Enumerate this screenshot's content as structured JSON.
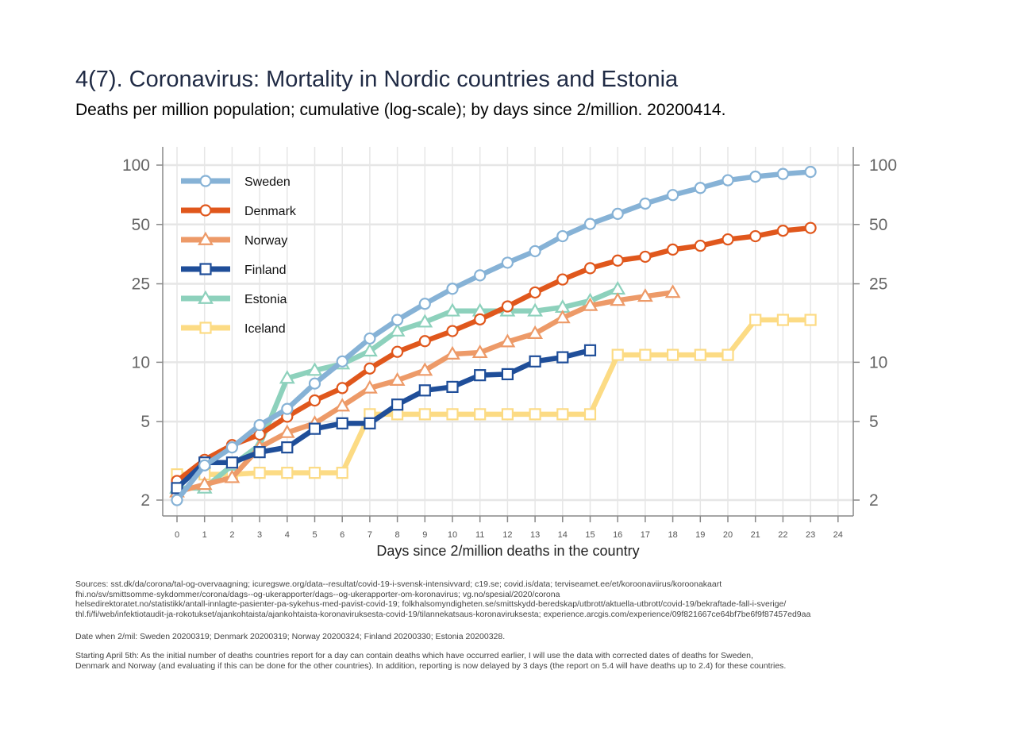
{
  "chart_data": {
    "type": "line",
    "title": "4(7). Coronavirus: Mortality in Nordic countries and Estonia",
    "subtitle": "Deaths per million population; cumulative (log-scale); by days since 2/million. 20200414.",
    "xlabel": "Days since 2/million deaths in the country",
    "ylabel": "",
    "yscale": "log",
    "xlim": [
      0,
      24
    ],
    "ylim": [
      1.65,
      110
    ],
    "x_ticks": [
      0,
      1,
      2,
      3,
      4,
      5,
      6,
      7,
      8,
      9,
      10,
      11,
      12,
      13,
      14,
      15,
      16,
      17,
      18,
      19,
      20,
      21,
      22,
      23,
      24
    ],
    "y_ticks": [
      2,
      5,
      10,
      25,
      50,
      100
    ],
    "grid": true,
    "legend_position": "top-left",
    "series": [
      {
        "name": "Sweden",
        "color": "#86b2d6",
        "marker": "circle",
        "x": [
          0,
          1,
          2,
          3,
          4,
          5,
          6,
          7,
          8,
          9,
          10,
          11,
          12,
          13,
          14,
          15,
          16,
          17,
          18,
          19,
          20,
          21,
          22,
          23
        ],
        "values": [
          2.0,
          3.0,
          3.7,
          4.8,
          5.8,
          7.8,
          10.1,
          13.2,
          16.4,
          19.8,
          23.6,
          27.6,
          32.0,
          36.6,
          43.6,
          50.3,
          56.6,
          63.8,
          70.5,
          76.6,
          83.8,
          87.4,
          90.2,
          92.4
        ]
      },
      {
        "name": "Denmark",
        "color": "#e0571c",
        "marker": "circle",
        "x": [
          0,
          1,
          2,
          3,
          4,
          5,
          6,
          7,
          8,
          9,
          10,
          11,
          12,
          13,
          14,
          15,
          16,
          17,
          18,
          19,
          20,
          21,
          22,
          23
        ],
        "values": [
          2.5,
          3.2,
          3.8,
          4.3,
          5.3,
          6.4,
          7.4,
          9.3,
          11.3,
          12.8,
          14.4,
          16.5,
          19.2,
          22.6,
          26.3,
          30.0,
          32.8,
          34.3,
          37.3,
          39.0,
          42.0,
          43.6,
          46.5,
          48.0
        ]
      },
      {
        "name": "Norway",
        "color": "#ed9a68",
        "marker": "triangle",
        "x": [
          0,
          1,
          2,
          3,
          4,
          5,
          6,
          7,
          8,
          9,
          10,
          11,
          12,
          13,
          14,
          15,
          16,
          17,
          18
        ],
        "values": [
          2.2,
          2.4,
          2.6,
          3.7,
          4.4,
          4.9,
          6.0,
          7.4,
          8.1,
          9.1,
          11.0,
          11.2,
          12.7,
          14.0,
          16.8,
          19.4,
          20.6,
          21.6,
          22.6
        ]
      },
      {
        "name": "Finland",
        "color": "#1f4e99",
        "marker": "square",
        "x": [
          0,
          1,
          2,
          3,
          4,
          5,
          6,
          7,
          8,
          9,
          10,
          11,
          12,
          13,
          14,
          15
        ],
        "values": [
          2.3,
          3.1,
          3.1,
          3.5,
          3.7,
          4.6,
          4.9,
          4.9,
          6.1,
          7.2,
          7.5,
          8.6,
          8.7,
          10.1,
          10.6,
          11.5
        ]
      },
      {
        "name": "Estonia",
        "color": "#8dd1bc",
        "marker": "triangle",
        "x": [
          0,
          1,
          2,
          3,
          4,
          5,
          6,
          7,
          8,
          9,
          10,
          11,
          12,
          13,
          14,
          15,
          16
        ],
        "values": [
          2.3,
          2.3,
          3.0,
          3.8,
          8.3,
          9.1,
          9.8,
          11.4,
          14.4,
          16.0,
          18.2,
          18.2,
          18.2,
          18.2,
          19.0,
          20.5,
          23.5
        ]
      },
      {
        "name": "Iceland",
        "color": "#fcdb84",
        "marker": "square",
        "x": [
          0,
          1,
          2,
          3,
          4,
          5,
          6,
          7,
          8,
          9,
          10,
          11,
          12,
          13,
          14,
          15,
          16,
          17,
          18,
          19,
          20,
          21,
          22,
          23
        ],
        "values": [
          2.7,
          2.7,
          2.7,
          2.75,
          2.75,
          2.75,
          2.75,
          5.45,
          5.45,
          5.45,
          5.45,
          5.45,
          5.45,
          5.45,
          5.45,
          5.45,
          10.9,
          10.9,
          10.9,
          10.9,
          10.9,
          16.4,
          16.4,
          16.4
        ]
      }
    ]
  },
  "notes": {
    "sources": "Sources: sst.dk/da/corona/tal-og-overvaagning; icuregswe.org/data--resultat/covid-19-i-svensk-intensivvard; c19.se; covid.is/data;  terviseamet.ee/et/koroonaviirus/koroonakaart\nfhi.no/sv/smittsomme-sykdommer/corona/dags--og-ukerapporter/dags--og-ukerapporter-om-koronavirus; vg.no/spesial/2020/corona\nhelsedirektoratet.no/statistikk/antall-innlagte-pasienter-pa-sykehus-med-pavist-covid-19; folkhalsomyndigheten.se/smittskydd-beredskap/utbrott/aktuella-utbrott/covid-19/bekraftade-fall-i-sverige/\nthl.fi/fi/web/infektiotaudit-ja-rokotukset/ajankohtaista/ajankohtaista-koronaviruksesta-covid-19/tilannekatsaus-koronaviruksesta; experience.arcgis.com/experience/09f821667ce64bf7be6f9f87457ed9aa",
    "dates": "Date when 2/mil: Sweden 20200319; Denmark 20200319; Norway 20200324; Finland 20200330; Estonia 20200328.",
    "method": "Starting April 5th: As the initial number of deaths countries report for a day can contain deaths which have occurred earlier, I will use the data with corrected dates of deaths for Sweden,\nDenmark and Norway (and evaluating if this can be done for the other countries). In addition, reporting is now delayed by 3 days (the report on 5.4 will have deaths up to 2.4) for these countries."
  }
}
